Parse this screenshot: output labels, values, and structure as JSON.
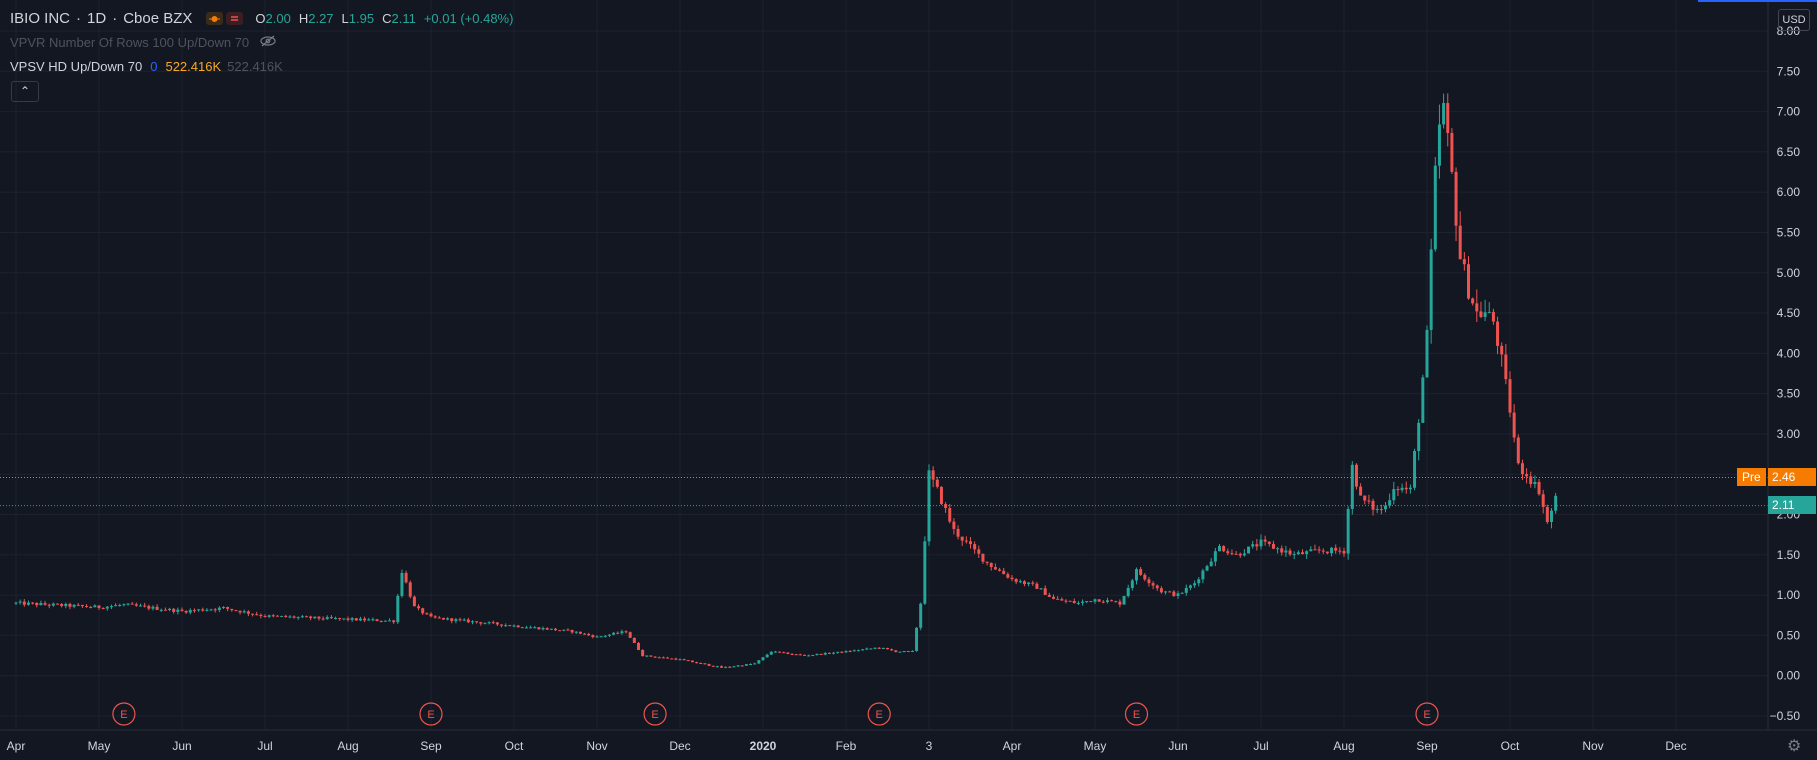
{
  "header": {
    "symbol": "IBIO INC",
    "interval": "1D",
    "exchange": "Cboe BZX",
    "open_label": "O",
    "open": "2.00",
    "high_label": "H",
    "high": "2.27",
    "low_label": "L",
    "low": "1.95",
    "close_label": "C",
    "close": "2.11",
    "change": "+0.01 (+0.48%)"
  },
  "indicators": {
    "vpvr": "VPVR Number Of Rows 100 Up/Down 70",
    "vpsv_name": "VPSV HD Up/Down 70",
    "vpsv_v1": "0",
    "vpsv_v2": "522.416K",
    "vpsv_v3": "522.416K"
  },
  "currency": "USD",
  "pre_label": "Pre",
  "pre_price": "2.46",
  "last_price": "2.11",
  "colors": {
    "background": "#131722",
    "up": "#26a69a",
    "down": "#ef5350",
    "pre": "#f57c00",
    "grid": "#1e222d",
    "text": "#d1d4dc",
    "muted": "#787b86",
    "accent": "#2962ff"
  },
  "chart_data": {
    "type": "candlestick",
    "ylabel": "USD",
    "ylim": [
      -0.5,
      8.0
    ],
    "y_ticks": [
      "8.00",
      "7.50",
      "7.00",
      "6.50",
      "6.00",
      "5.50",
      "5.00",
      "4.50",
      "4.00",
      "3.50",
      "3.00",
      "2.50",
      "2.00",
      "1.50",
      "1.00",
      "0.50",
      "0.00",
      "−0.50"
    ],
    "x_ticks": [
      "Apr",
      "May",
      "Jun",
      "Jul",
      "Aug",
      "Sep",
      "Oct",
      "Nov",
      "Dec",
      "2020",
      "Feb",
      "3",
      "Apr",
      "May",
      "Jun",
      "Jul",
      "Aug",
      "Sep",
      "Oct",
      "Nov",
      "Dec"
    ],
    "x_tick_bold": [
      false,
      false,
      false,
      false,
      false,
      false,
      false,
      false,
      false,
      true,
      false,
      false,
      false,
      false,
      false,
      false,
      false,
      false,
      false,
      false,
      false
    ],
    "earnings_marker": "E",
    "earnings_at_tick": [
      1.3,
      5.0,
      7.7,
      10.4,
      13.5,
      17.0
    ],
    "pre_market_price": 2.46,
    "last_price": 2.11,
    "grid": true,
    "price_path": [
      [
        0.0,
        0.9
      ],
      [
        1.0,
        0.85
      ],
      [
        1.3,
        0.88
      ],
      [
        2.0,
        0.8
      ],
      [
        2.5,
        0.84
      ],
      [
        3.0,
        0.74
      ],
      [
        4.0,
        0.7
      ],
      [
        4.55,
        0.68
      ],
      [
        4.65,
        1.3
      ],
      [
        4.8,
        0.85
      ],
      [
        5.0,
        0.72
      ],
      [
        6.0,
        0.62
      ],
      [
        6.7,
        0.55
      ],
      [
        7.0,
        0.48
      ],
      [
        7.35,
        0.55
      ],
      [
        7.55,
        0.25
      ],
      [
        8.0,
        0.2
      ],
      [
        8.25,
        0.15
      ],
      [
        8.5,
        0.1
      ],
      [
        8.9,
        0.15
      ],
      [
        9.1,
        0.3
      ],
      [
        9.5,
        0.25
      ],
      [
        10.0,
        0.3
      ],
      [
        10.4,
        0.35
      ],
      [
        10.6,
        0.3
      ],
      [
        10.8,
        0.3
      ],
      [
        10.9,
        0.9
      ],
      [
        11.0,
        2.5
      ],
      [
        11.1,
        2.3
      ],
      [
        11.3,
        1.8
      ],
      [
        11.5,
        1.6
      ],
      [
        11.7,
        1.4
      ],
      [
        12.0,
        1.2
      ],
      [
        12.3,
        1.1
      ],
      [
        12.5,
        0.95
      ],
      [
        12.8,
        0.9
      ],
      [
        13.0,
        0.95
      ],
      [
        13.3,
        0.9
      ],
      [
        13.5,
        1.3
      ],
      [
        13.8,
        1.05
      ],
      [
        14.0,
        1.0
      ],
      [
        14.2,
        1.15
      ],
      [
        14.5,
        1.6
      ],
      [
        14.7,
        1.5
      ],
      [
        15.0,
        1.65
      ],
      [
        15.4,
        1.5
      ],
      [
        15.7,
        1.55
      ],
      [
        16.0,
        1.55
      ],
      [
        16.1,
        2.6
      ],
      [
        16.2,
        2.2
      ],
      [
        16.4,
        2.05
      ],
      [
        16.5,
        2.1
      ],
      [
        16.6,
        2.35
      ],
      [
        16.8,
        2.3
      ],
      [
        16.9,
        3.2
      ],
      [
        17.0,
        4.2
      ],
      [
        17.1,
        6.2
      ],
      [
        17.18,
        7.2
      ],
      [
        17.3,
        6.2
      ],
      [
        17.4,
        5.2
      ],
      [
        17.5,
        4.8
      ],
      [
        17.6,
        4.5
      ],
      [
        17.7,
        4.5
      ],
      [
        17.8,
        4.4
      ],
      [
        17.9,
        3.9
      ],
      [
        18.0,
        3.3
      ],
      [
        18.1,
        2.6
      ],
      [
        18.2,
        2.5
      ],
      [
        18.35,
        2.3
      ],
      [
        18.45,
        1.9
      ],
      [
        18.55,
        2.2
      ],
      [
        18.6,
        2.05
      ]
    ]
  }
}
